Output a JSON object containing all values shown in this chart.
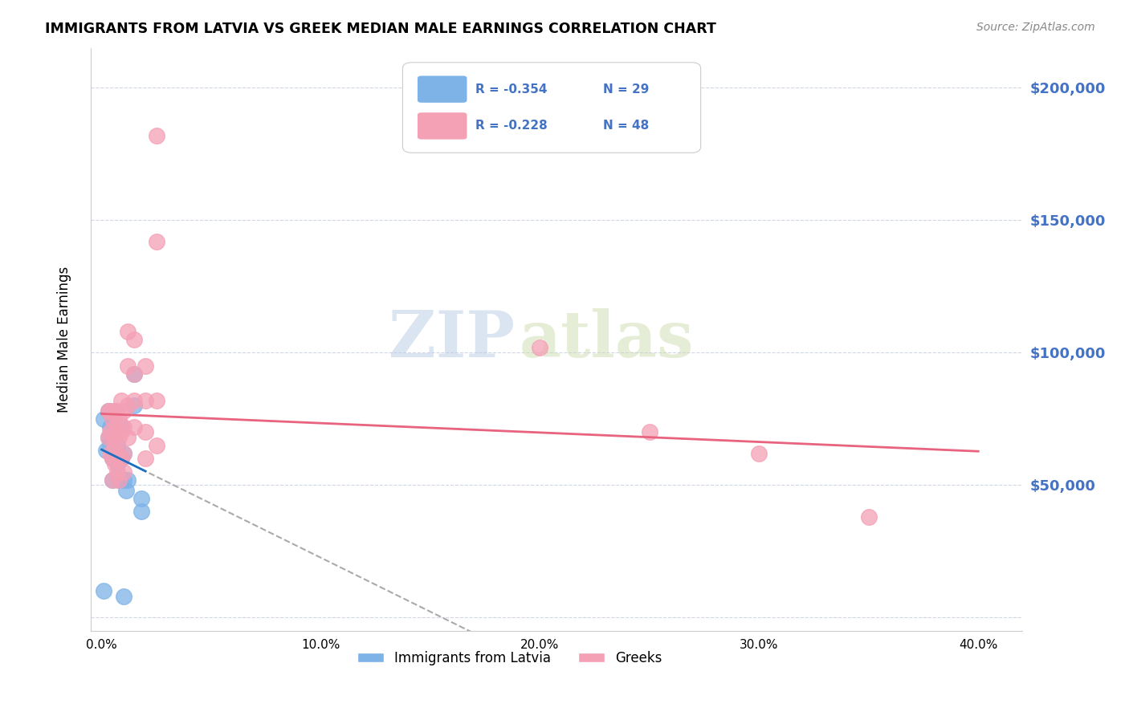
{
  "title": "IMMIGRANTS FROM LATVIA VS GREEK MEDIAN MALE EARNINGS CORRELATION CHART",
  "source": "Source: ZipAtlas.com",
  "xlabel_ticks": [
    "0.0%",
    "10.0%",
    "20.0%",
    "30.0%",
    "40.0%"
  ],
  "xlabel_tick_vals": [
    0.0,
    0.1,
    0.2,
    0.3,
    0.4
  ],
  "ylabel": "Median Male Earnings",
  "ylabel_ticks": [
    0,
    50000,
    100000,
    150000,
    200000
  ],
  "ylabel_tick_labels": [
    "",
    "$50,000",
    "$100,000",
    "$150,000",
    "$200,000"
  ],
  "xlim": [
    -0.005,
    0.42
  ],
  "ylim": [
    -5000,
    215000
  ],
  "watermark_zip": "ZIP",
  "watermark_atlas": "atlas",
  "latvia_color": "#7eb3e8",
  "greek_color": "#f4a0b5",
  "latvia_line_color": "#1a6fc4",
  "greek_line_color": "#e8637e",
  "grid_color": "#d0d8e8",
  "latvia_r": "R = -0.354",
  "latvia_n": "N = 29",
  "greek_r": "R = -0.228",
  "greek_n": "N = 48",
  "latvia_points_x": [
    0.001,
    0.002,
    0.003,
    0.003,
    0.004,
    0.004,
    0.005,
    0.005,
    0.005,
    0.005,
    0.006,
    0.006,
    0.006,
    0.007,
    0.007,
    0.008,
    0.008,
    0.009,
    0.009,
    0.01,
    0.01,
    0.011,
    0.012,
    0.015,
    0.015,
    0.018,
    0.018,
    0.001,
    0.01
  ],
  "latvia_points_y": [
    75000,
    63000,
    78000,
    68000,
    72000,
    65000,
    75000,
    68000,
    60000,
    52000,
    78000,
    72000,
    65000,
    65000,
    58000,
    60000,
    52000,
    72000,
    60000,
    62000,
    52000,
    48000,
    52000,
    92000,
    80000,
    45000,
    40000,
    10000,
    8000
  ],
  "greek_points_x": [
    0.003,
    0.003,
    0.004,
    0.004,
    0.004,
    0.005,
    0.005,
    0.005,
    0.005,
    0.006,
    0.006,
    0.006,
    0.006,
    0.007,
    0.007,
    0.007,
    0.007,
    0.008,
    0.008,
    0.008,
    0.008,
    0.009,
    0.009,
    0.009,
    0.01,
    0.01,
    0.01,
    0.01,
    0.012,
    0.012,
    0.012,
    0.012,
    0.015,
    0.015,
    0.015,
    0.015,
    0.02,
    0.02,
    0.02,
    0.02,
    0.025,
    0.025,
    0.025,
    0.025,
    0.2,
    0.25,
    0.3,
    0.35
  ],
  "greek_points_y": [
    78000,
    68000,
    78000,
    70000,
    62000,
    75000,
    68000,
    60000,
    52000,
    78000,
    72000,
    65000,
    58000,
    78000,
    70000,
    62000,
    55000,
    75000,
    68000,
    60000,
    52000,
    82000,
    70000,
    60000,
    78000,
    72000,
    62000,
    55000,
    108000,
    95000,
    80000,
    68000,
    105000,
    92000,
    82000,
    72000,
    95000,
    82000,
    70000,
    60000,
    182000,
    142000,
    82000,
    65000,
    102000,
    70000,
    62000,
    38000
  ]
}
